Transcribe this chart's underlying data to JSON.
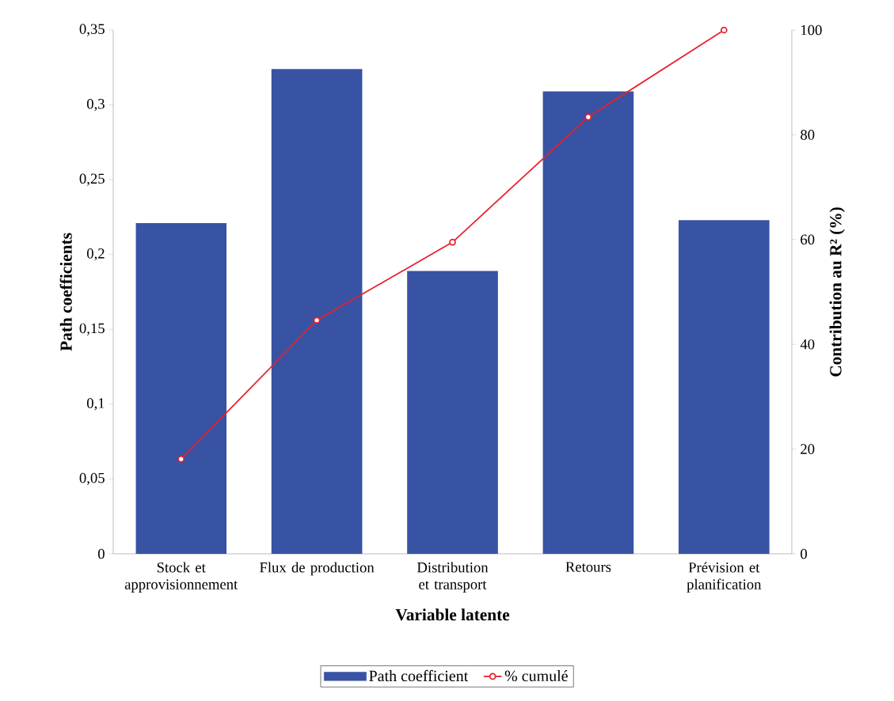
{
  "chart_data": {
    "type": "bar",
    "xlabel": "Variable latente",
    "ylabel": "Path coefficients",
    "y2label": "Contribution au R² (%)",
    "categories": [
      "Stock et approvisionnement",
      "Flux de production",
      "Distribution et transport",
      "Retours",
      "Prévision et planification"
    ],
    "series": [
      {
        "name": "Path coefficient",
        "color": "#3853a4",
        "values": [
          0.221,
          0.324,
          0.189,
          0.309,
          0.223
        ]
      },
      {
        "name": "% cumulé",
        "type": "line",
        "axis": "y2",
        "color": "#e8202a",
        "marker": "circle",
        "values": [
          18.1,
          44.6,
          59.5,
          83.4,
          100
        ]
      }
    ],
    "ylim": [
      0,
      0.35
    ],
    "yticks": [
      0,
      {
        "value": 0.05,
        "label": "0,05"
      },
      {
        "value": 0.1,
        "label": "0,1"
      },
      {
        "value": 0.15,
        "label": "0,15"
      },
      {
        "value": 0.2,
        "label": "0,2"
      },
      {
        "value": 0.25,
        "label": "0,25"
      },
      {
        "value": 0.3,
        "label": "0,3"
      },
      {
        "value": 0.35,
        "label": "0,35"
      }
    ],
    "y2lim": [
      0,
      100
    ],
    "y2ticks": [
      0,
      20,
      40,
      60,
      80,
      100
    ],
    "legend": "bottom"
  }
}
